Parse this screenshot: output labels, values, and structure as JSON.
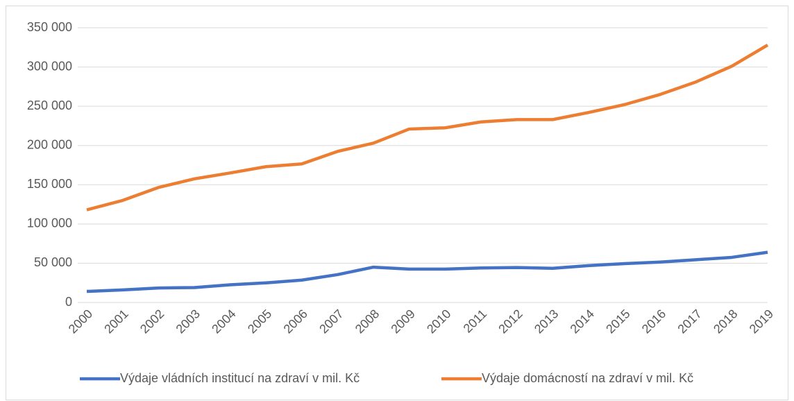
{
  "chart_data": {
    "type": "line",
    "categories": [
      "2000",
      "2001",
      "2002",
      "2003",
      "2004",
      "2005",
      "2006",
      "2007",
      "2008",
      "2009",
      "2010",
      "2011",
      "2012",
      "2013",
      "2014",
      "2015",
      "2016",
      "2017",
      "2018",
      "2019"
    ],
    "series": [
      {
        "name": "Výdaje vládních institucí na zdraví v mil. Kč",
        "color": "#4472c4",
        "values": [
          14100,
          16000,
          18500,
          19000,
          22500,
          25000,
          28500,
          35500,
          45000,
          42500,
          42500,
          44000,
          44500,
          43500,
          47000,
          49500,
          51500,
          54500,
          57500,
          64000
        ]
      },
      {
        "name": "Výdaje domácností na zdraví v mil. Kč",
        "color": "#ed7d31",
        "values": [
          118000,
          130000,
          146500,
          157500,
          165000,
          173000,
          176500,
          192500,
          203000,
          221000,
          222500,
          230000,
          233000,
          233000,
          242000,
          252000,
          265000,
          281000,
          301000,
          328000
        ]
      }
    ],
    "ylim": [
      0,
      350000
    ],
    "yticks": [
      0,
      {
        "value": 50000,
        "label": "50 000"
      },
      {
        "value": 100000,
        "label": "100 000"
      },
      {
        "value": 150000,
        "label": "150 000"
      },
      {
        "value": 200000,
        "label": "200 000"
      },
      {
        "value": 250000,
        "label": "250 000"
      },
      {
        "value": 300000,
        "label": "300 000"
      },
      {
        "value": 350000,
        "label": "350 000"
      }
    ],
    "grid": true,
    "legend": "bottom"
  }
}
